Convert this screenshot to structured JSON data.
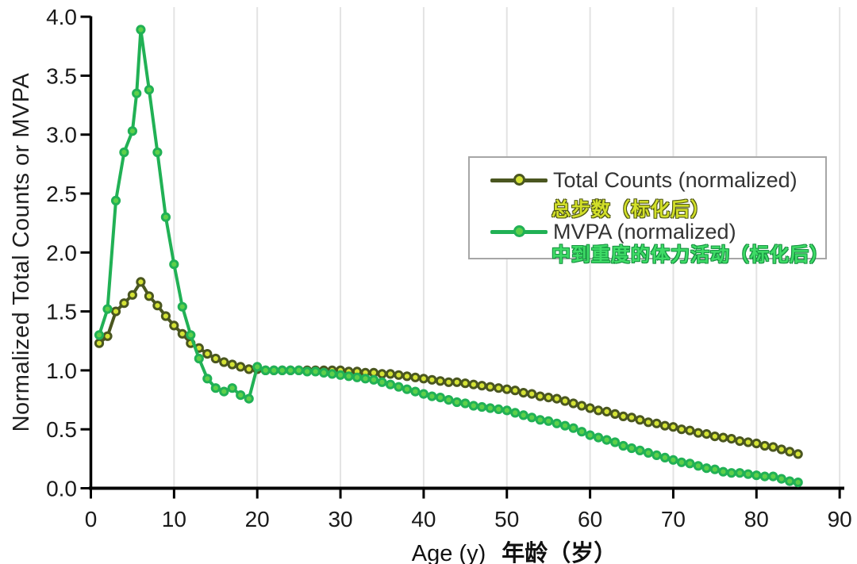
{
  "figure": {
    "y_axis_title": "Normalized Total Counts or MVPA",
    "x_axis_label_en": "Age (y)",
    "x_axis_label_zh": "年龄（岁）"
  },
  "chart_data": {
    "type": "line",
    "title": "",
    "xlabel": "Age (y) 年龄（岁）",
    "ylabel": "Normalized Total Counts or MVPA",
    "xlim": [
      0,
      90
    ],
    "ylim": [
      0,
      4.0
    ],
    "x_ticks": [
      0,
      10,
      20,
      30,
      40,
      50,
      60,
      70,
      80,
      90
    ],
    "y_ticks": [
      0.0,
      0.5,
      1.0,
      1.5,
      2.0,
      2.5,
      3.0,
      3.5,
      4.0
    ],
    "grid": "vertical-only",
    "grid_color": "#e3e3e3",
    "axis_color": "#000000",
    "legend_position": "upper-right",
    "legend_border_color": "#a6a6a6",
    "series": [
      {
        "name": "Total Counts (normalized)",
        "name_zh": "总步数（标化后）",
        "line_color": "#4a5620",
        "marker_fill": "#d4e335",
        "x": [
          1,
          2,
          3,
          4,
          5,
          6,
          7,
          8,
          9,
          10,
          11,
          12,
          13,
          14,
          15,
          16,
          17,
          18,
          19,
          20,
          21,
          22,
          23,
          24,
          25,
          26,
          27,
          28,
          29,
          30,
          31,
          32,
          33,
          34,
          35,
          36,
          37,
          38,
          39,
          40,
          41,
          42,
          43,
          44,
          45,
          46,
          47,
          48,
          49,
          50,
          51,
          52,
          53,
          54,
          55,
          56,
          57,
          58,
          59,
          60,
          61,
          62,
          63,
          64,
          65,
          66,
          67,
          68,
          69,
          70,
          71,
          72,
          73,
          74,
          75,
          76,
          77,
          78,
          79,
          80,
          81,
          82,
          83,
          84,
          85
        ],
        "values": [
          1.23,
          1.29,
          1.5,
          1.57,
          1.64,
          1.75,
          1.63,
          1.55,
          1.46,
          1.38,
          1.31,
          1.23,
          1.19,
          1.14,
          1.1,
          1.07,
          1.05,
          1.03,
          1.01,
          1.01,
          1.0,
          1.0,
          1.0,
          1.0,
          1.0,
          1.0,
          1.0,
          1.0,
          1.0,
          1.0,
          0.99,
          0.99,
          0.98,
          0.98,
          0.97,
          0.97,
          0.96,
          0.95,
          0.94,
          0.93,
          0.92,
          0.91,
          0.9,
          0.9,
          0.89,
          0.88,
          0.87,
          0.86,
          0.85,
          0.84,
          0.83,
          0.81,
          0.8,
          0.78,
          0.77,
          0.76,
          0.74,
          0.72,
          0.7,
          0.68,
          0.66,
          0.65,
          0.63,
          0.61,
          0.6,
          0.58,
          0.56,
          0.55,
          0.53,
          0.52,
          0.5,
          0.49,
          0.47,
          0.46,
          0.44,
          0.43,
          0.42,
          0.4,
          0.39,
          0.38,
          0.36,
          0.35,
          0.33,
          0.31,
          0.29
        ]
      },
      {
        "name": "MVPA (normalized)",
        "name_zh": "中到重度的体力活动（标化后）",
        "line_color": "#21b155",
        "marker_fill": "#5ed04a",
        "x": [
          1,
          2,
          3,
          4,
          5,
          5.5,
          6,
          7,
          8,
          9,
          10,
          11,
          12,
          13,
          14,
          15,
          16,
          17,
          18,
          19,
          20,
          21,
          22,
          23,
          24,
          25,
          26,
          27,
          28,
          29,
          30,
          31,
          32,
          33,
          34,
          35,
          36,
          37,
          38,
          39,
          40,
          41,
          42,
          43,
          44,
          45,
          46,
          47,
          48,
          49,
          50,
          51,
          52,
          53,
          54,
          55,
          56,
          57,
          58,
          59,
          60,
          61,
          62,
          63,
          64,
          65,
          66,
          67,
          68,
          69,
          70,
          71,
          72,
          73,
          74,
          75,
          76,
          77,
          78,
          79,
          80,
          81,
          82,
          83,
          84,
          85
        ],
        "values": [
          1.3,
          1.52,
          2.44,
          2.85,
          3.03,
          3.35,
          3.89,
          3.38,
          2.85,
          2.3,
          1.9,
          1.54,
          1.3,
          1.1,
          0.93,
          0.85,
          0.82,
          0.85,
          0.79,
          0.76,
          1.03,
          1.0,
          1.0,
          1.0,
          1.0,
          1.0,
          0.99,
          0.99,
          0.98,
          0.97,
          0.96,
          0.95,
          0.94,
          0.93,
          0.92,
          0.9,
          0.88,
          0.86,
          0.84,
          0.82,
          0.8,
          0.78,
          0.77,
          0.75,
          0.73,
          0.72,
          0.7,
          0.69,
          0.68,
          0.67,
          0.66,
          0.64,
          0.62,
          0.6,
          0.58,
          0.57,
          0.55,
          0.53,
          0.51,
          0.48,
          0.45,
          0.43,
          0.41,
          0.39,
          0.36,
          0.34,
          0.32,
          0.3,
          0.28,
          0.26,
          0.24,
          0.22,
          0.21,
          0.19,
          0.17,
          0.16,
          0.14,
          0.13,
          0.13,
          0.12,
          0.11,
          0.1,
          0.1,
          0.08,
          0.06,
          0.05
        ]
      }
    ]
  }
}
